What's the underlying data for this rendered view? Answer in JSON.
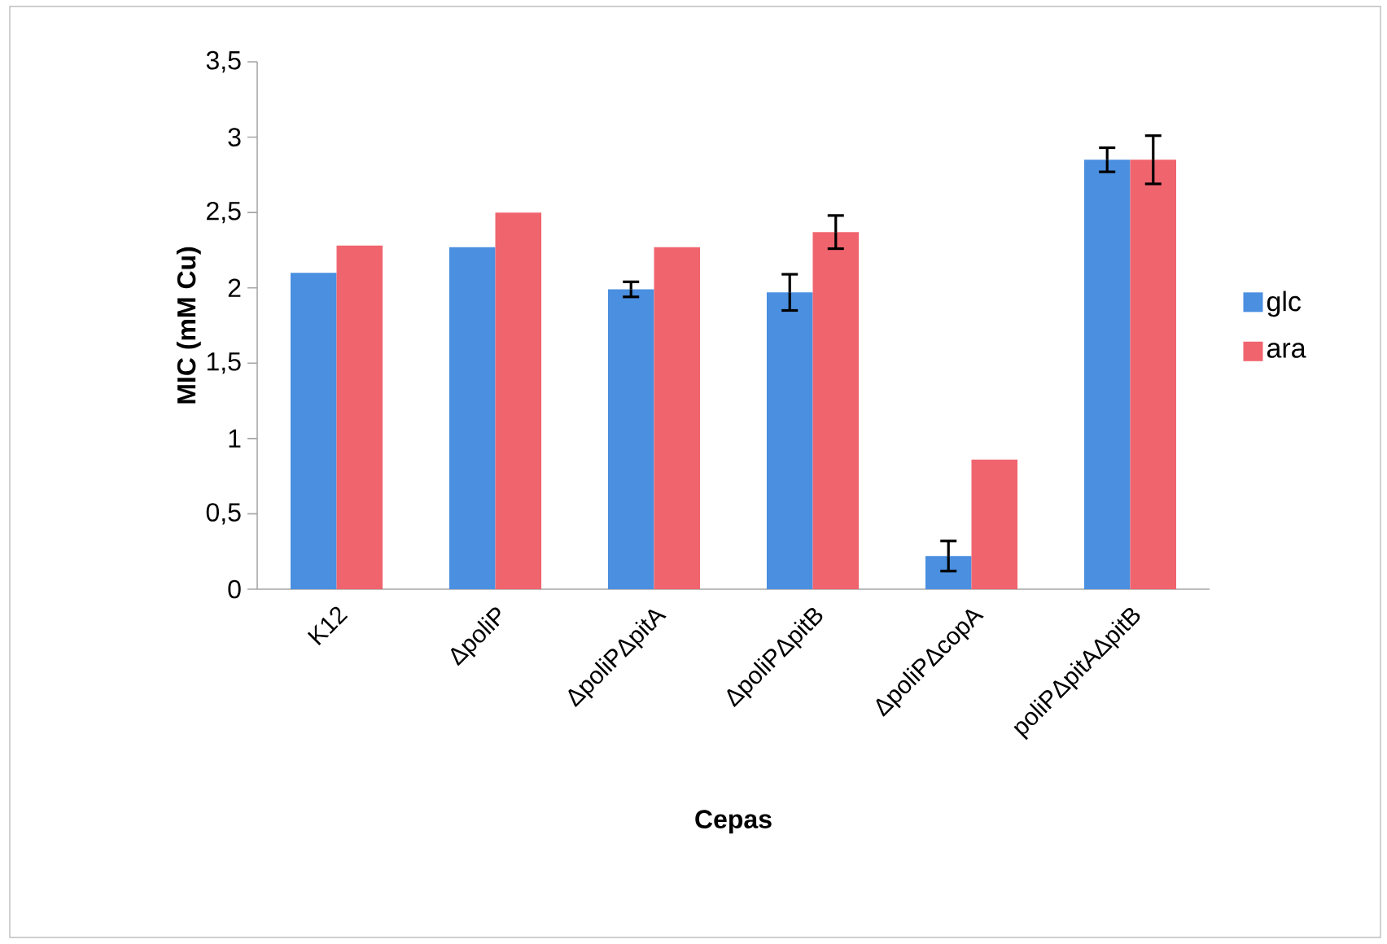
{
  "chart_data": {
    "type": "bar",
    "xlabel": "Cepas",
    "ylabel": "MIC (mM Cu)",
    "categories": [
      "K12",
      "ΔpoliP",
      "ΔpoliPΔpitA",
      "ΔpoliPΔpitB",
      "ΔpoliPΔcopA",
      "poliPΔpitAΔpitB"
    ],
    "series": [
      {
        "name": "glc",
        "color": "#4a8fe0",
        "values": [
          2.1,
          2.27,
          1.99,
          1.97,
          0.22,
          2.85
        ],
        "errors": [
          null,
          null,
          0.05,
          0.12,
          0.1,
          0.08
        ]
      },
      {
        "name": "ara",
        "color": "#f0646e",
        "values": [
          2.28,
          2.5,
          2.27,
          2.37,
          0.86,
          2.85
        ],
        "errors": [
          null,
          null,
          null,
          0.11,
          null,
          0.16
        ]
      }
    ],
    "ylim": [
      0,
      3.5
    ],
    "yticks": [
      0,
      {
        "value": 0.5,
        "label": "0,5"
      },
      1,
      {
        "value": 1.5,
        "label": "1,5"
      },
      2,
      {
        "value": 2.5,
        "label": "2,5"
      },
      3,
      {
        "value": 3.5,
        "label": "3,5"
      }
    ],
    "grid": false,
    "legend": "right"
  }
}
